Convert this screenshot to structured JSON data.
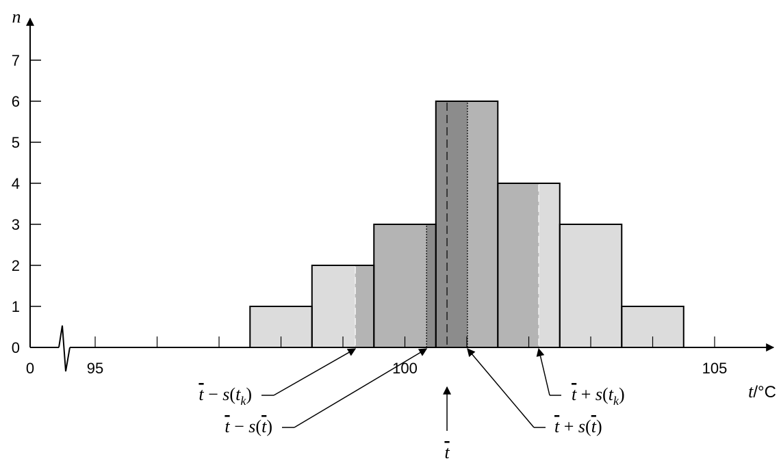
{
  "chart_data": {
    "type": "bar",
    "chart_style": "histogram",
    "x_axis": {
      "label_var": "t",
      "label_unit": "/°C",
      "break_symbol": true,
      "origin_label": "0",
      "tick_labels": [
        {
          "value": 95,
          "text": "95"
        },
        {
          "value": 100,
          "text": "100"
        },
        {
          "value": 105,
          "text": "105"
        }
      ],
      "minor_ticks": [
        95,
        96,
        97,
        98,
        99,
        100,
        101,
        102,
        103,
        104,
        105
      ],
      "xlim": [
        93.95,
        105.7
      ]
    },
    "y_axis": {
      "label": "n",
      "ticks": [
        0,
        1,
        2,
        3,
        4,
        5,
        6,
        7
      ],
      "ylim": [
        0,
        8
      ]
    },
    "bins": [
      {
        "x0": 97.5,
        "x1": 98.5,
        "count": 1
      },
      {
        "x0": 98.5,
        "x1": 99.5,
        "count": 2
      },
      {
        "x0": 99.5,
        "x1": 100.5,
        "count": 3
      },
      {
        "x0": 100.5,
        "x1": 101.5,
        "count": 6
      },
      {
        "x0": 101.5,
        "x1": 102.5,
        "count": 4
      },
      {
        "x0": 102.5,
        "x1": 103.5,
        "count": 3
      },
      {
        "x0": 103.5,
        "x1": 104.5,
        "count": 1
      }
    ],
    "mean": 100.68,
    "s_tk": 1.48,
    "s_mean": 0.33,
    "colors": {
      "outer": "#dcdcdc",
      "middle": "#b4b4b4",
      "inner": "#8c8c8c",
      "stroke": "#000000"
    },
    "annotations": [
      {
        "id": "mean-minus-stk",
        "target": "mean-s_tk",
        "lead": "t",
        "op": " − s(t",
        "sub": "k",
        "tail": ")"
      },
      {
        "id": "mean-minus-smean",
        "target": "mean-s_mean",
        "lead": "t",
        "op": " − s(",
        "over": "t",
        "tail": ")"
      },
      {
        "id": "mean-plus-stk",
        "target": "mean+s_tk",
        "lead": "t",
        "op": " + s(t",
        "sub": "k",
        "tail": ")"
      },
      {
        "id": "mean-plus-smean",
        "target": "mean+s_mean",
        "lead": "t",
        "op": " + s(",
        "over": "t",
        "tail": ")"
      },
      {
        "id": "mean",
        "target": "mean",
        "lead": "t"
      }
    ]
  }
}
